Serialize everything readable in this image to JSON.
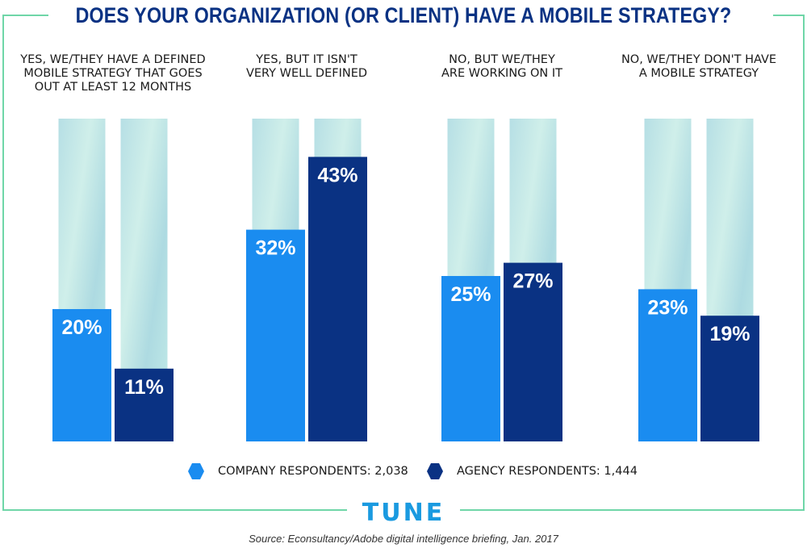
{
  "title": "DOES YOUR ORGANIZATION (OR CLIENT) HAVE A MOBILE STRATEGY?",
  "colors": {
    "company": "#1a8cf0",
    "agency": "#0a3283",
    "frame": "#6fd6a8",
    "title": "#0a3283"
  },
  "legend": {
    "company": "COMPANY RESPONDENTS: 2,038",
    "agency": "AGENCY RESPONDENTS: 1,444"
  },
  "logo": "TUNE",
  "source": "Source: Econsultancy/Adobe digital intelligence briefing, Jan. 2017",
  "chart_data": {
    "type": "bar",
    "categories": [
      "YES, WE/THEY HAVE A DEFINED MOBILE STRATEGY THAT GOES OUT AT LEAST 12 MONTHS",
      "YES, BUT IT ISN'T VERY WELL DEFINED",
      "NO, BUT WE/THEY ARE WORKING ON IT",
      "NO, WE/THEY DON'T HAVE A MOBILE STRATEGY"
    ],
    "category_lines": [
      [
        "YES, WE/THEY HAVE A DEFINED",
        "MOBILE STRATEGY THAT GOES",
        "OUT AT LEAST 12 MONTHS"
      ],
      [
        "YES, BUT IT ISN'T",
        "VERY WELL DEFINED"
      ],
      [
        "NO, BUT WE/THEY",
        "ARE WORKING ON IT"
      ],
      [
        "NO, WE/THEY DON'T HAVE",
        "A MOBILE STRATEGY"
      ]
    ],
    "series": [
      {
        "name": "COMPANY RESPONDENTS: 2,038",
        "values": [
          20,
          32,
          25,
          23
        ],
        "labels": [
          "20%",
          "32%",
          "25%",
          "23%"
        ]
      },
      {
        "name": "AGENCY RESPONDENTS: 1,444",
        "values": [
          11,
          43,
          27,
          19
        ],
        "labels": [
          "11%",
          "43%",
          "27%",
          "19%"
        ]
      }
    ],
    "ylim": [
      0,
      50
    ],
    "legend_position": "bottom",
    "grid": false
  }
}
